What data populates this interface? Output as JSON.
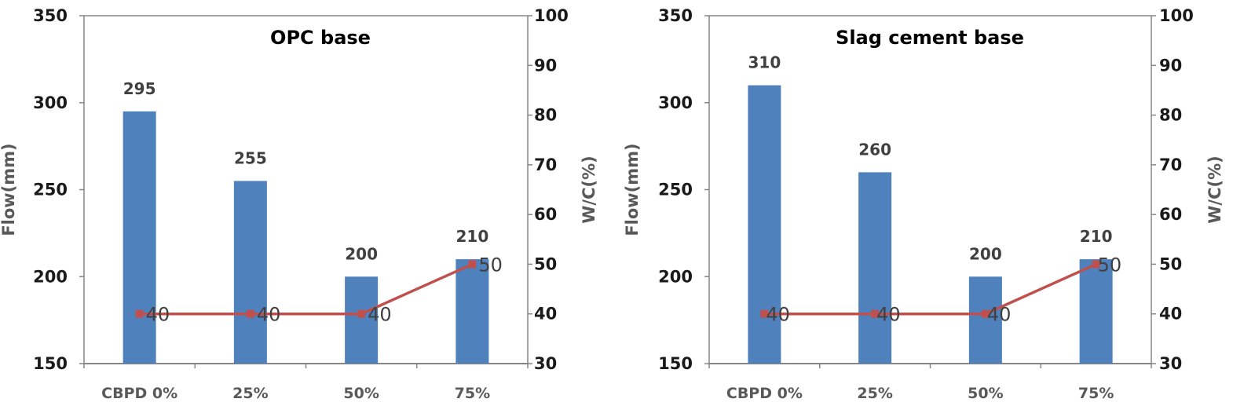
{
  "colors": {
    "bar": "#4f81bd",
    "line": "#c0504d",
    "plot_border": "#868686",
    "axis": "#868686",
    "background": "#ffffff"
  },
  "chart_data": [
    {
      "type": "bar",
      "title": "OPC base",
      "categories": [
        "CBPD 0%",
        "25%",
        "50%",
        "75%"
      ],
      "ylabel": "Flow(mm)",
      "y2label": "W/C(%)",
      "ylim": [
        150,
        350
      ],
      "y_ticks": [
        150,
        200,
        250,
        300,
        350
      ],
      "y2lim": [
        30,
        100
      ],
      "y2_ticks": [
        30,
        40,
        50,
        60,
        70,
        80,
        90,
        100
      ],
      "grid": false,
      "series": [
        {
          "kind": "bar",
          "axis": "left",
          "values": [
            295,
            255,
            200,
            210
          ],
          "labels": [
            "295",
            "255",
            "200",
            "210"
          ]
        },
        {
          "kind": "line",
          "axis": "right",
          "values": [
            40,
            40,
            40,
            50
          ],
          "labels": [
            "40",
            "40",
            "40",
            "50"
          ]
        }
      ]
    },
    {
      "type": "bar",
      "title": "Slag cement base",
      "categories": [
        "CBPD 0%",
        "25%",
        "50%",
        "75%"
      ],
      "ylabel": "Flow(mm)",
      "y2label": "W/C(%)",
      "ylim": [
        150,
        350
      ],
      "y_ticks": [
        150,
        200,
        250,
        300,
        350
      ],
      "y2lim": [
        30,
        100
      ],
      "y2_ticks": [
        30,
        40,
        50,
        60,
        70,
        80,
        90,
        100
      ],
      "grid": false,
      "series": [
        {
          "kind": "bar",
          "axis": "left",
          "values": [
            310,
            260,
            200,
            210
          ],
          "labels": [
            "310",
            "260",
            "200",
            "210"
          ]
        },
        {
          "kind": "line",
          "axis": "right",
          "values": [
            40,
            40,
            40,
            50
          ],
          "labels": [
            "40",
            "40",
            "40",
            "50"
          ]
        }
      ]
    }
  ]
}
